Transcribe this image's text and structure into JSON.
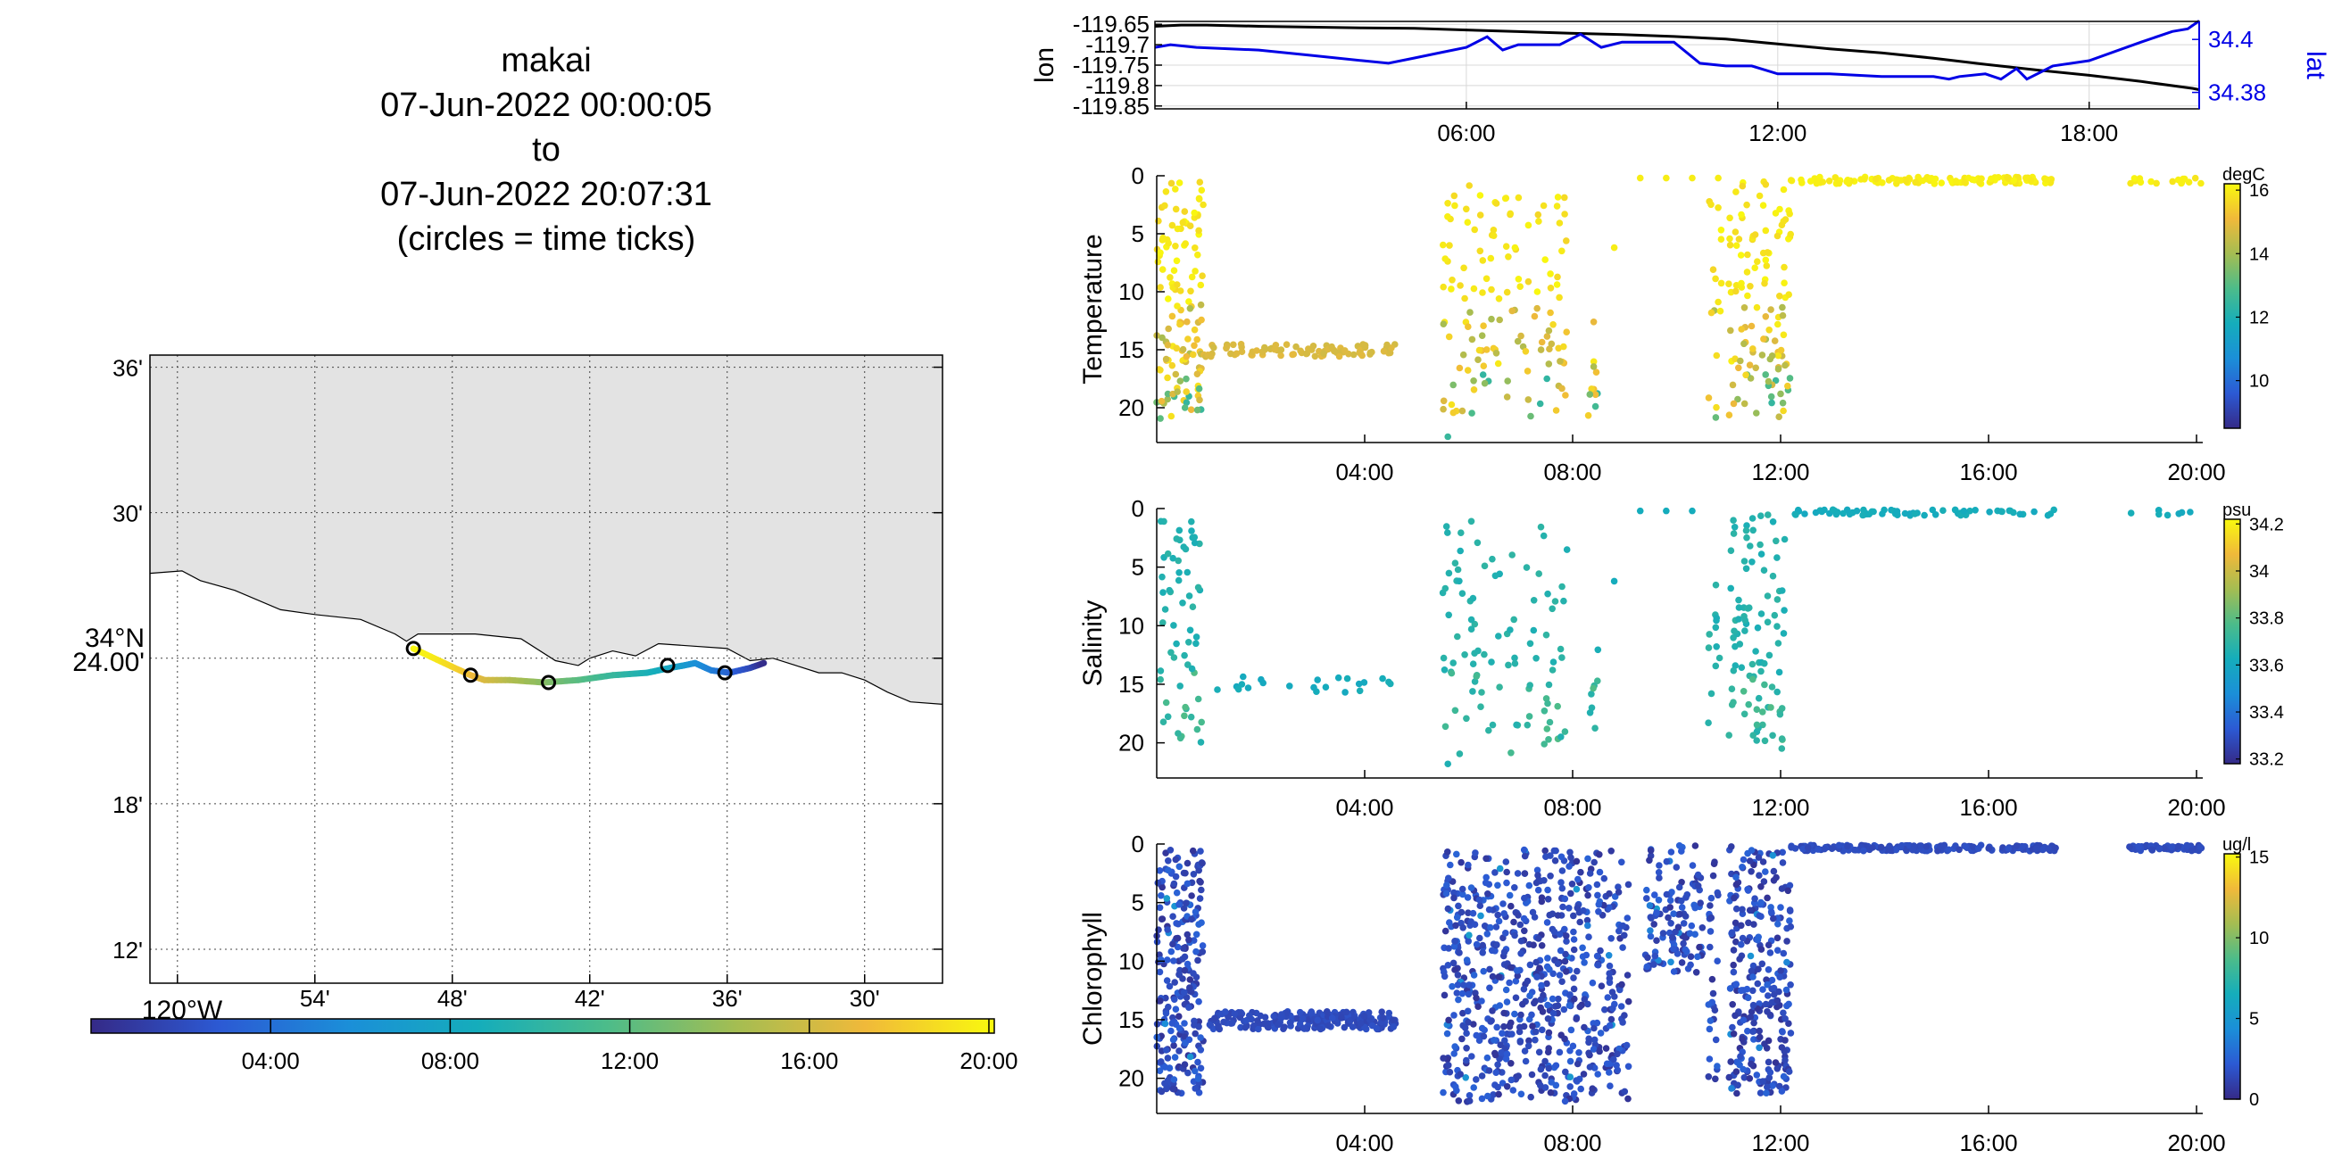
{
  "title": {
    "lines": [
      "makai",
      "07-Jun-2022 00:00:05",
      "to",
      "07-Jun-2022 20:07:31",
      "(circles = time ticks)"
    ]
  },
  "colors": {
    "land": "#e3e3e3",
    "line_black": "#000000",
    "line_blue": "#0000e6",
    "parula": [
      "#352a87",
      "#2c5ad4",
      "#1b8fd8",
      "#15adbb",
      "#4cbc8a",
      "#a4bd52",
      "#f0b93a",
      "#f9f90e"
    ]
  },
  "chart_data": [
    {
      "id": "map",
      "type": "scatter",
      "title": "",
      "xlabel": "",
      "ylabel": "",
      "x_tick_labels": [
        "120°W",
        "54'",
        "48'",
        "42'",
        "36'",
        "30'"
      ],
      "x_ticks_min_west": [
        0,
        6,
        12,
        18,
        24,
        30
      ],
      "y_tick_labels": [
        "12'",
        "18'",
        "24.00'",
        "30'",
        "36'"
      ],
      "y_ticks_min_north": [
        12,
        18,
        24,
        30,
        36
      ],
      "y_degree_label": "34°N",
      "xlim_min_west": [
        -1.2,
        33.4
      ],
      "ylim_min_north": [
        10.6,
        36.5
      ],
      "coastline": [
        [
          -1.2,
          27.5
        ],
        [
          0.2,
          27.6
        ],
        [
          1.0,
          27.2
        ],
        [
          2.5,
          26.8
        ],
        [
          4.5,
          26.0
        ],
        [
          6.0,
          25.8
        ],
        [
          8.0,
          25.6
        ],
        [
          9.5,
          25.0
        ],
        [
          10.0,
          24.7
        ],
        [
          10.5,
          25.0
        ],
        [
          13.0,
          25.0
        ],
        [
          15.0,
          24.8
        ],
        [
          16.5,
          23.9
        ],
        [
          17.5,
          23.7
        ],
        [
          18.0,
          24.0
        ],
        [
          19.0,
          24.3
        ],
        [
          20.0,
          24.1
        ],
        [
          21.0,
          24.6
        ],
        [
          22.5,
          24.5
        ],
        [
          24.0,
          24.4
        ],
        [
          25.0,
          23.9
        ],
        [
          26.0,
          24.0
        ],
        [
          27.0,
          23.7
        ],
        [
          28.0,
          23.4
        ],
        [
          29.0,
          23.4
        ],
        [
          30.0,
          23.1
        ],
        [
          31.0,
          22.6
        ],
        [
          32.0,
          22.2
        ],
        [
          33.4,
          22.1
        ]
      ],
      "track_min": [
        [
          10.3,
          24.4
        ],
        [
          11.2,
          24.0
        ],
        [
          12.1,
          23.6
        ],
        [
          12.8,
          23.3
        ],
        [
          13.4,
          23.1
        ],
        [
          14.5,
          23.1
        ],
        [
          16.0,
          23.0
        ],
        [
          17.5,
          23.1
        ],
        [
          19.0,
          23.3
        ],
        [
          20.5,
          23.4
        ],
        [
          21.5,
          23.6
        ],
        [
          22.1,
          23.7
        ],
        [
          22.6,
          23.8
        ],
        [
          23.3,
          23.5
        ],
        [
          24.1,
          23.4
        ],
        [
          25.0,
          23.6
        ],
        [
          25.6,
          23.8
        ]
      ],
      "track_hours": [
        20.1,
        19.5,
        18.5,
        17.5,
        16.5,
        15.0,
        13.5,
        12.0,
        10.5,
        9.0,
        8.0,
        7.0,
        6.0,
        5.0,
        3.5,
        2.0,
        0.0
      ],
      "time_tick_circles_min": [
        [
          10.3,
          24.4
        ],
        [
          12.8,
          23.3
        ],
        [
          16.2,
          23.0
        ],
        [
          21.4,
          23.7
        ],
        [
          23.9,
          23.4
        ]
      ],
      "colorbar": {
        "tick_labels": [
          "04:00",
          "08:00",
          "12:00",
          "16:00",
          "20:00"
        ],
        "ticks_hours": [
          4,
          8,
          12,
          16,
          20
        ],
        "range_hours": [
          0,
          20.12
        ]
      }
    },
    {
      "id": "lonlat",
      "type": "line",
      "title": "",
      "xlabel": "",
      "ylabel": "lon",
      "ylabel_right": "lat",
      "x_tick_labels": [
        "06:00",
        "12:00",
        "18:00"
      ],
      "x_ticks_hours": [
        6,
        12,
        18
      ],
      "xlim_hours": [
        0,
        20.12
      ],
      "ylim_left": [
        -119.857,
        -119.643
      ],
      "y_tick_labels_left": [
        "-119.65",
        "-119.7",
        "-119.75",
        "-119.8",
        "-119.85"
      ],
      "y_ticks_left": [
        -119.65,
        -119.7,
        -119.75,
        -119.8,
        -119.85
      ],
      "ylim_right": [
        34.3738,
        34.4068
      ],
      "y_tick_labels_right": [
        "34.4",
        "34.38"
      ],
      "y_ticks_right": [
        34.4,
        34.38
      ],
      "series": [
        {
          "axis": "left",
          "x": [
            0,
            0.5,
            1,
            2,
            3,
            4,
            5,
            6,
            7,
            8,
            9,
            10,
            11,
            12,
            13,
            14,
            15,
            16,
            17,
            18,
            19,
            20,
            20.12
          ],
          "values": [
            -119.655,
            -119.652,
            -119.652,
            -119.655,
            -119.657,
            -119.659,
            -119.66,
            -119.664,
            -119.668,
            -119.672,
            -119.675,
            -119.68,
            -119.686,
            -119.698,
            -119.71,
            -119.72,
            -119.733,
            -119.748,
            -119.762,
            -119.775,
            -119.79,
            -119.807,
            -119.81
          ]
        },
        {
          "axis": "right",
          "x": [
            0,
            0.3,
            0.8,
            2,
            3,
            4,
            4.5,
            5,
            5.5,
            6,
            6.4,
            6.7,
            7,
            7.8,
            8.2,
            8.6,
            9,
            10,
            10.5,
            11,
            11.5,
            12,
            13,
            14,
            15,
            15.3,
            15.5,
            16,
            16.3,
            16.6,
            16.8,
            17.3,
            18,
            19,
            19.6,
            19.9,
            20.12
          ],
          "values": [
            34.397,
            34.398,
            34.397,
            34.396,
            34.394,
            34.392,
            34.391,
            34.393,
            34.395,
            34.397,
            34.401,
            34.396,
            34.398,
            34.398,
            34.402,
            34.397,
            34.399,
            34.399,
            34.391,
            34.39,
            34.39,
            34.387,
            34.387,
            34.386,
            34.386,
            34.385,
            34.386,
            34.387,
            34.385,
            34.389,
            34.385,
            34.39,
            34.392,
            34.399,
            34.403,
            34.404,
            34.407
          ]
        }
      ]
    },
    {
      "id": "temperature",
      "type": "scatter",
      "title": "",
      "xlabel": "",
      "ylabel": "Temperature",
      "x_tick_labels": [
        "04:00",
        "08:00",
        "12:00",
        "16:00",
        "20:00"
      ],
      "x_ticks_hours": [
        4,
        8,
        12,
        16,
        20
      ],
      "xlim_hours": [
        0,
        20.12
      ],
      "ylim_depth": [
        23,
        0
      ],
      "y_tick_labels": [
        "0",
        "5",
        "10",
        "15",
        "20"
      ],
      "y_ticks": [
        0,
        5,
        10,
        15,
        20
      ],
      "colorbar": {
        "unit": "degC",
        "range": [
          8.5,
          16.2
        ],
        "tick_labels": [
          "10",
          "12",
          "14",
          "16"
        ],
        "ticks": [
          10,
          12,
          14,
          16
        ]
      },
      "bursts": [
        {
          "t": [
            0.0,
            0.9
          ],
          "d": [
            0.5,
            21
          ],
          "n": 130,
          "mode": "temp"
        },
        {
          "t": [
            0.9,
            4.6
          ],
          "d": [
            14.5,
            15.6
          ],
          "n": 85,
          "mode": "flat",
          "value": 14.8
        },
        {
          "t": [
            5.5,
            6.6
          ],
          "d": [
            0.8,
            21
          ],
          "n": 70,
          "mode": "temp"
        },
        {
          "t": [
            6.7,
            7.9
          ],
          "d": [
            0.8,
            21
          ],
          "n": 65,
          "mode": "temp"
        },
        {
          "t": [
            8.3,
            8.5
          ],
          "d": [
            12,
            21
          ],
          "n": 12,
          "mode": "temp"
        },
        {
          "t": [
            10.6,
            10.9
          ],
          "d": [
            1,
            21
          ],
          "n": 16,
          "mode": "temp"
        },
        {
          "t": [
            11.0,
            12.2
          ],
          "d": [
            0.4,
            21
          ],
          "n": 120,
          "mode": "temp"
        },
        {
          "t": [
            12.2,
            17.3
          ],
          "d": [
            0.1,
            0.7
          ],
          "n": 120,
          "mode": "flat",
          "value": 16.0
        },
        {
          "t": [
            18.7,
            20.1
          ],
          "d": [
            0.1,
            0.7
          ],
          "n": 16,
          "mode": "flat",
          "value": 16.0
        }
      ],
      "points": [
        [
          5.6,
          22.5,
          12.5
        ],
        [
          8.8,
          6.2,
          16
        ],
        [
          9.3,
          0.2,
          16
        ],
        [
          9.8,
          0.2,
          16
        ],
        [
          10.3,
          0.2,
          16
        ],
        [
          10.8,
          0.2,
          16
        ]
      ]
    },
    {
      "id": "salinity",
      "type": "scatter",
      "title": "",
      "xlabel": "",
      "ylabel": "Salinity",
      "x_tick_labels": [
        "04:00",
        "08:00",
        "12:00",
        "16:00",
        "20:00"
      ],
      "x_ticks_hours": [
        4,
        8,
        12,
        16,
        20
      ],
      "xlim_hours": [
        0,
        20.12
      ],
      "ylim_depth": [
        23,
        0
      ],
      "y_tick_labels": [
        "0",
        "5",
        "10",
        "15",
        "20"
      ],
      "y_ticks": [
        0,
        5,
        10,
        15,
        20
      ],
      "colorbar": {
        "unit": "psu",
        "range": [
          33.18,
          34.22
        ],
        "tick_labels": [
          "33.2",
          "33.4",
          "33.6",
          "33.8",
          "34",
          "34.2"
        ],
        "ticks": [
          33.2,
          33.4,
          33.6,
          33.8,
          34.0,
          34.2
        ]
      },
      "bursts": [
        {
          "t": [
            0.0,
            0.9
          ],
          "d": [
            0.5,
            20.5
          ],
          "n": 60,
          "mode": "sal"
        },
        {
          "t": [
            1.0,
            4.6
          ],
          "d": [
            14.3,
            15.7
          ],
          "n": 22,
          "mode": "flat",
          "value": 33.62
        },
        {
          "t": [
            5.5,
            6.6
          ],
          "d": [
            0.8,
            21
          ],
          "n": 50,
          "mode": "sal"
        },
        {
          "t": [
            6.7,
            7.9
          ],
          "d": [
            0.8,
            21
          ],
          "n": 45,
          "mode": "sal"
        },
        {
          "t": [
            8.3,
            8.5
          ],
          "d": [
            12,
            20
          ],
          "n": 8,
          "mode": "sal"
        },
        {
          "t": [
            10.6,
            10.9
          ],
          "d": [
            1,
            20
          ],
          "n": 12,
          "mode": "sal"
        },
        {
          "t": [
            11.0,
            12.1
          ],
          "d": [
            0.4,
            20.5
          ],
          "n": 95,
          "mode": "sal"
        },
        {
          "t": [
            12.2,
            17.3
          ],
          "d": [
            0.1,
            0.6
          ],
          "n": 70,
          "mode": "flat",
          "value": 33.62
        },
        {
          "t": [
            18.7,
            20.1
          ],
          "d": [
            0.1,
            0.6
          ],
          "n": 8,
          "mode": "flat",
          "value": 33.62
        }
      ],
      "points": [
        [
          5.6,
          21.8,
          33.65
        ],
        [
          8.8,
          6.2,
          33.62
        ],
        [
          9.3,
          0.2,
          33.62
        ],
        [
          9.8,
          0.2,
          33.62
        ],
        [
          10.3,
          0.2,
          33.62
        ]
      ]
    },
    {
      "id": "chlorophyll",
      "type": "scatter",
      "title": "",
      "xlabel": "",
      "ylabel": "Chlorophyll",
      "x_tick_labels": [
        "04:00",
        "08:00",
        "12:00",
        "16:00",
        "20:00"
      ],
      "x_ticks_hours": [
        4,
        8,
        12,
        16,
        20
      ],
      "xlim_hours": [
        0,
        20.12
      ],
      "ylim_depth": [
        23,
        0
      ],
      "y_tick_labels": [
        "0",
        "5",
        "10",
        "15",
        "20"
      ],
      "y_ticks": [
        0,
        5,
        10,
        15,
        20
      ],
      "colorbar": {
        "unit": "ug/l",
        "range": [
          0,
          15.2
        ],
        "tick_labels": [
          "0",
          "5",
          "10",
          "15"
        ],
        "ticks": [
          0,
          5,
          10,
          15
        ]
      },
      "bursts": [
        {
          "t": [
            0.0,
            0.9
          ],
          "d": [
            0.5,
            21.5
          ],
          "n": 230,
          "mode": "chl"
        },
        {
          "t": [
            1.0,
            4.6
          ],
          "d": [
            14.3,
            15.8
          ],
          "n": 210,
          "mode": "flat",
          "value": 1.5
        },
        {
          "t": [
            5.5,
            9.1
          ],
          "d": [
            0.5,
            22
          ],
          "n": 650,
          "mode": "chl"
        },
        {
          "t": [
            9.4,
            10.5
          ],
          "d": [
            0.1,
            11
          ],
          "n": 120,
          "mode": "chl"
        },
        {
          "t": [
            10.6,
            10.8
          ],
          "d": [
            0.5,
            20.5
          ],
          "n": 30,
          "mode": "chl"
        },
        {
          "t": [
            11.0,
            12.2
          ],
          "d": [
            0.1,
            21.5
          ],
          "n": 260,
          "mode": "chl"
        },
        {
          "t": [
            12.2,
            17.3
          ],
          "d": [
            0.1,
            0.6
          ],
          "n": 180,
          "mode": "flat",
          "value": 1.5
        },
        {
          "t": [
            18.7,
            20.1
          ],
          "d": [
            0.1,
            0.6
          ],
          "n": 60,
          "mode": "flat",
          "value": 1.5
        }
      ],
      "points": []
    }
  ]
}
